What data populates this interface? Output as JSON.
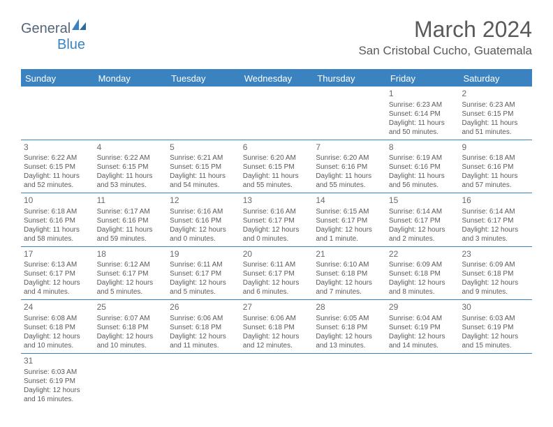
{
  "logo": {
    "general": "General",
    "blue": "Blue"
  },
  "title": "March 2024",
  "location": "San Cristobal Cucho, Guatemala",
  "weekdays": [
    "Sunday",
    "Monday",
    "Tuesday",
    "Wednesday",
    "Thursday",
    "Friday",
    "Saturday"
  ],
  "colors": {
    "accent": "#3b83c0",
    "text": "#5a5a5a",
    "header_text": "#ffffff",
    "background": "#ffffff"
  },
  "weeks": [
    [
      {
        "num": "",
        "sunrise": "",
        "sunset": "",
        "daylight": ""
      },
      {
        "num": "",
        "sunrise": "",
        "sunset": "",
        "daylight": ""
      },
      {
        "num": "",
        "sunrise": "",
        "sunset": "",
        "daylight": ""
      },
      {
        "num": "",
        "sunrise": "",
        "sunset": "",
        "daylight": ""
      },
      {
        "num": "",
        "sunrise": "",
        "sunset": "",
        "daylight": ""
      },
      {
        "num": "1",
        "sunrise": "Sunrise: 6:23 AM",
        "sunset": "Sunset: 6:14 PM",
        "daylight": "Daylight: 11 hours and 50 minutes."
      },
      {
        "num": "2",
        "sunrise": "Sunrise: 6:23 AM",
        "sunset": "Sunset: 6:15 PM",
        "daylight": "Daylight: 11 hours and 51 minutes."
      }
    ],
    [
      {
        "num": "3",
        "sunrise": "Sunrise: 6:22 AM",
        "sunset": "Sunset: 6:15 PM",
        "daylight": "Daylight: 11 hours and 52 minutes."
      },
      {
        "num": "4",
        "sunrise": "Sunrise: 6:22 AM",
        "sunset": "Sunset: 6:15 PM",
        "daylight": "Daylight: 11 hours and 53 minutes."
      },
      {
        "num": "5",
        "sunrise": "Sunrise: 6:21 AM",
        "sunset": "Sunset: 6:15 PM",
        "daylight": "Daylight: 11 hours and 54 minutes."
      },
      {
        "num": "6",
        "sunrise": "Sunrise: 6:20 AM",
        "sunset": "Sunset: 6:15 PM",
        "daylight": "Daylight: 11 hours and 55 minutes."
      },
      {
        "num": "7",
        "sunrise": "Sunrise: 6:20 AM",
        "sunset": "Sunset: 6:16 PM",
        "daylight": "Daylight: 11 hours and 55 minutes."
      },
      {
        "num": "8",
        "sunrise": "Sunrise: 6:19 AM",
        "sunset": "Sunset: 6:16 PM",
        "daylight": "Daylight: 11 hours and 56 minutes."
      },
      {
        "num": "9",
        "sunrise": "Sunrise: 6:18 AM",
        "sunset": "Sunset: 6:16 PM",
        "daylight": "Daylight: 11 hours and 57 minutes."
      }
    ],
    [
      {
        "num": "10",
        "sunrise": "Sunrise: 6:18 AM",
        "sunset": "Sunset: 6:16 PM",
        "daylight": "Daylight: 11 hours and 58 minutes."
      },
      {
        "num": "11",
        "sunrise": "Sunrise: 6:17 AM",
        "sunset": "Sunset: 6:16 PM",
        "daylight": "Daylight: 11 hours and 59 minutes."
      },
      {
        "num": "12",
        "sunrise": "Sunrise: 6:16 AM",
        "sunset": "Sunset: 6:16 PM",
        "daylight": "Daylight: 12 hours and 0 minutes."
      },
      {
        "num": "13",
        "sunrise": "Sunrise: 6:16 AM",
        "sunset": "Sunset: 6:17 PM",
        "daylight": "Daylight: 12 hours and 0 minutes."
      },
      {
        "num": "14",
        "sunrise": "Sunrise: 6:15 AM",
        "sunset": "Sunset: 6:17 PM",
        "daylight": "Daylight: 12 hours and 1 minute."
      },
      {
        "num": "15",
        "sunrise": "Sunrise: 6:14 AM",
        "sunset": "Sunset: 6:17 PM",
        "daylight": "Daylight: 12 hours and 2 minutes."
      },
      {
        "num": "16",
        "sunrise": "Sunrise: 6:14 AM",
        "sunset": "Sunset: 6:17 PM",
        "daylight": "Daylight: 12 hours and 3 minutes."
      }
    ],
    [
      {
        "num": "17",
        "sunrise": "Sunrise: 6:13 AM",
        "sunset": "Sunset: 6:17 PM",
        "daylight": "Daylight: 12 hours and 4 minutes."
      },
      {
        "num": "18",
        "sunrise": "Sunrise: 6:12 AM",
        "sunset": "Sunset: 6:17 PM",
        "daylight": "Daylight: 12 hours and 5 minutes."
      },
      {
        "num": "19",
        "sunrise": "Sunrise: 6:11 AM",
        "sunset": "Sunset: 6:17 PM",
        "daylight": "Daylight: 12 hours and 5 minutes."
      },
      {
        "num": "20",
        "sunrise": "Sunrise: 6:11 AM",
        "sunset": "Sunset: 6:17 PM",
        "daylight": "Daylight: 12 hours and 6 minutes."
      },
      {
        "num": "21",
        "sunrise": "Sunrise: 6:10 AM",
        "sunset": "Sunset: 6:18 PM",
        "daylight": "Daylight: 12 hours and 7 minutes."
      },
      {
        "num": "22",
        "sunrise": "Sunrise: 6:09 AM",
        "sunset": "Sunset: 6:18 PM",
        "daylight": "Daylight: 12 hours and 8 minutes."
      },
      {
        "num": "23",
        "sunrise": "Sunrise: 6:09 AM",
        "sunset": "Sunset: 6:18 PM",
        "daylight": "Daylight: 12 hours and 9 minutes."
      }
    ],
    [
      {
        "num": "24",
        "sunrise": "Sunrise: 6:08 AM",
        "sunset": "Sunset: 6:18 PM",
        "daylight": "Daylight: 12 hours and 10 minutes."
      },
      {
        "num": "25",
        "sunrise": "Sunrise: 6:07 AM",
        "sunset": "Sunset: 6:18 PM",
        "daylight": "Daylight: 12 hours and 10 minutes."
      },
      {
        "num": "26",
        "sunrise": "Sunrise: 6:06 AM",
        "sunset": "Sunset: 6:18 PM",
        "daylight": "Daylight: 12 hours and 11 minutes."
      },
      {
        "num": "27",
        "sunrise": "Sunrise: 6:06 AM",
        "sunset": "Sunset: 6:18 PM",
        "daylight": "Daylight: 12 hours and 12 minutes."
      },
      {
        "num": "28",
        "sunrise": "Sunrise: 6:05 AM",
        "sunset": "Sunset: 6:18 PM",
        "daylight": "Daylight: 12 hours and 13 minutes."
      },
      {
        "num": "29",
        "sunrise": "Sunrise: 6:04 AM",
        "sunset": "Sunset: 6:19 PM",
        "daylight": "Daylight: 12 hours and 14 minutes."
      },
      {
        "num": "30",
        "sunrise": "Sunrise: 6:03 AM",
        "sunset": "Sunset: 6:19 PM",
        "daylight": "Daylight: 12 hours and 15 minutes."
      }
    ],
    [
      {
        "num": "31",
        "sunrise": "Sunrise: 6:03 AM",
        "sunset": "Sunset: 6:19 PM",
        "daylight": "Daylight: 12 hours and 16 minutes."
      },
      {
        "num": "",
        "sunrise": "",
        "sunset": "",
        "daylight": ""
      },
      {
        "num": "",
        "sunrise": "",
        "sunset": "",
        "daylight": ""
      },
      {
        "num": "",
        "sunrise": "",
        "sunset": "",
        "daylight": ""
      },
      {
        "num": "",
        "sunrise": "",
        "sunset": "",
        "daylight": ""
      },
      {
        "num": "",
        "sunrise": "",
        "sunset": "",
        "daylight": ""
      },
      {
        "num": "",
        "sunrise": "",
        "sunset": "",
        "daylight": ""
      }
    ]
  ]
}
